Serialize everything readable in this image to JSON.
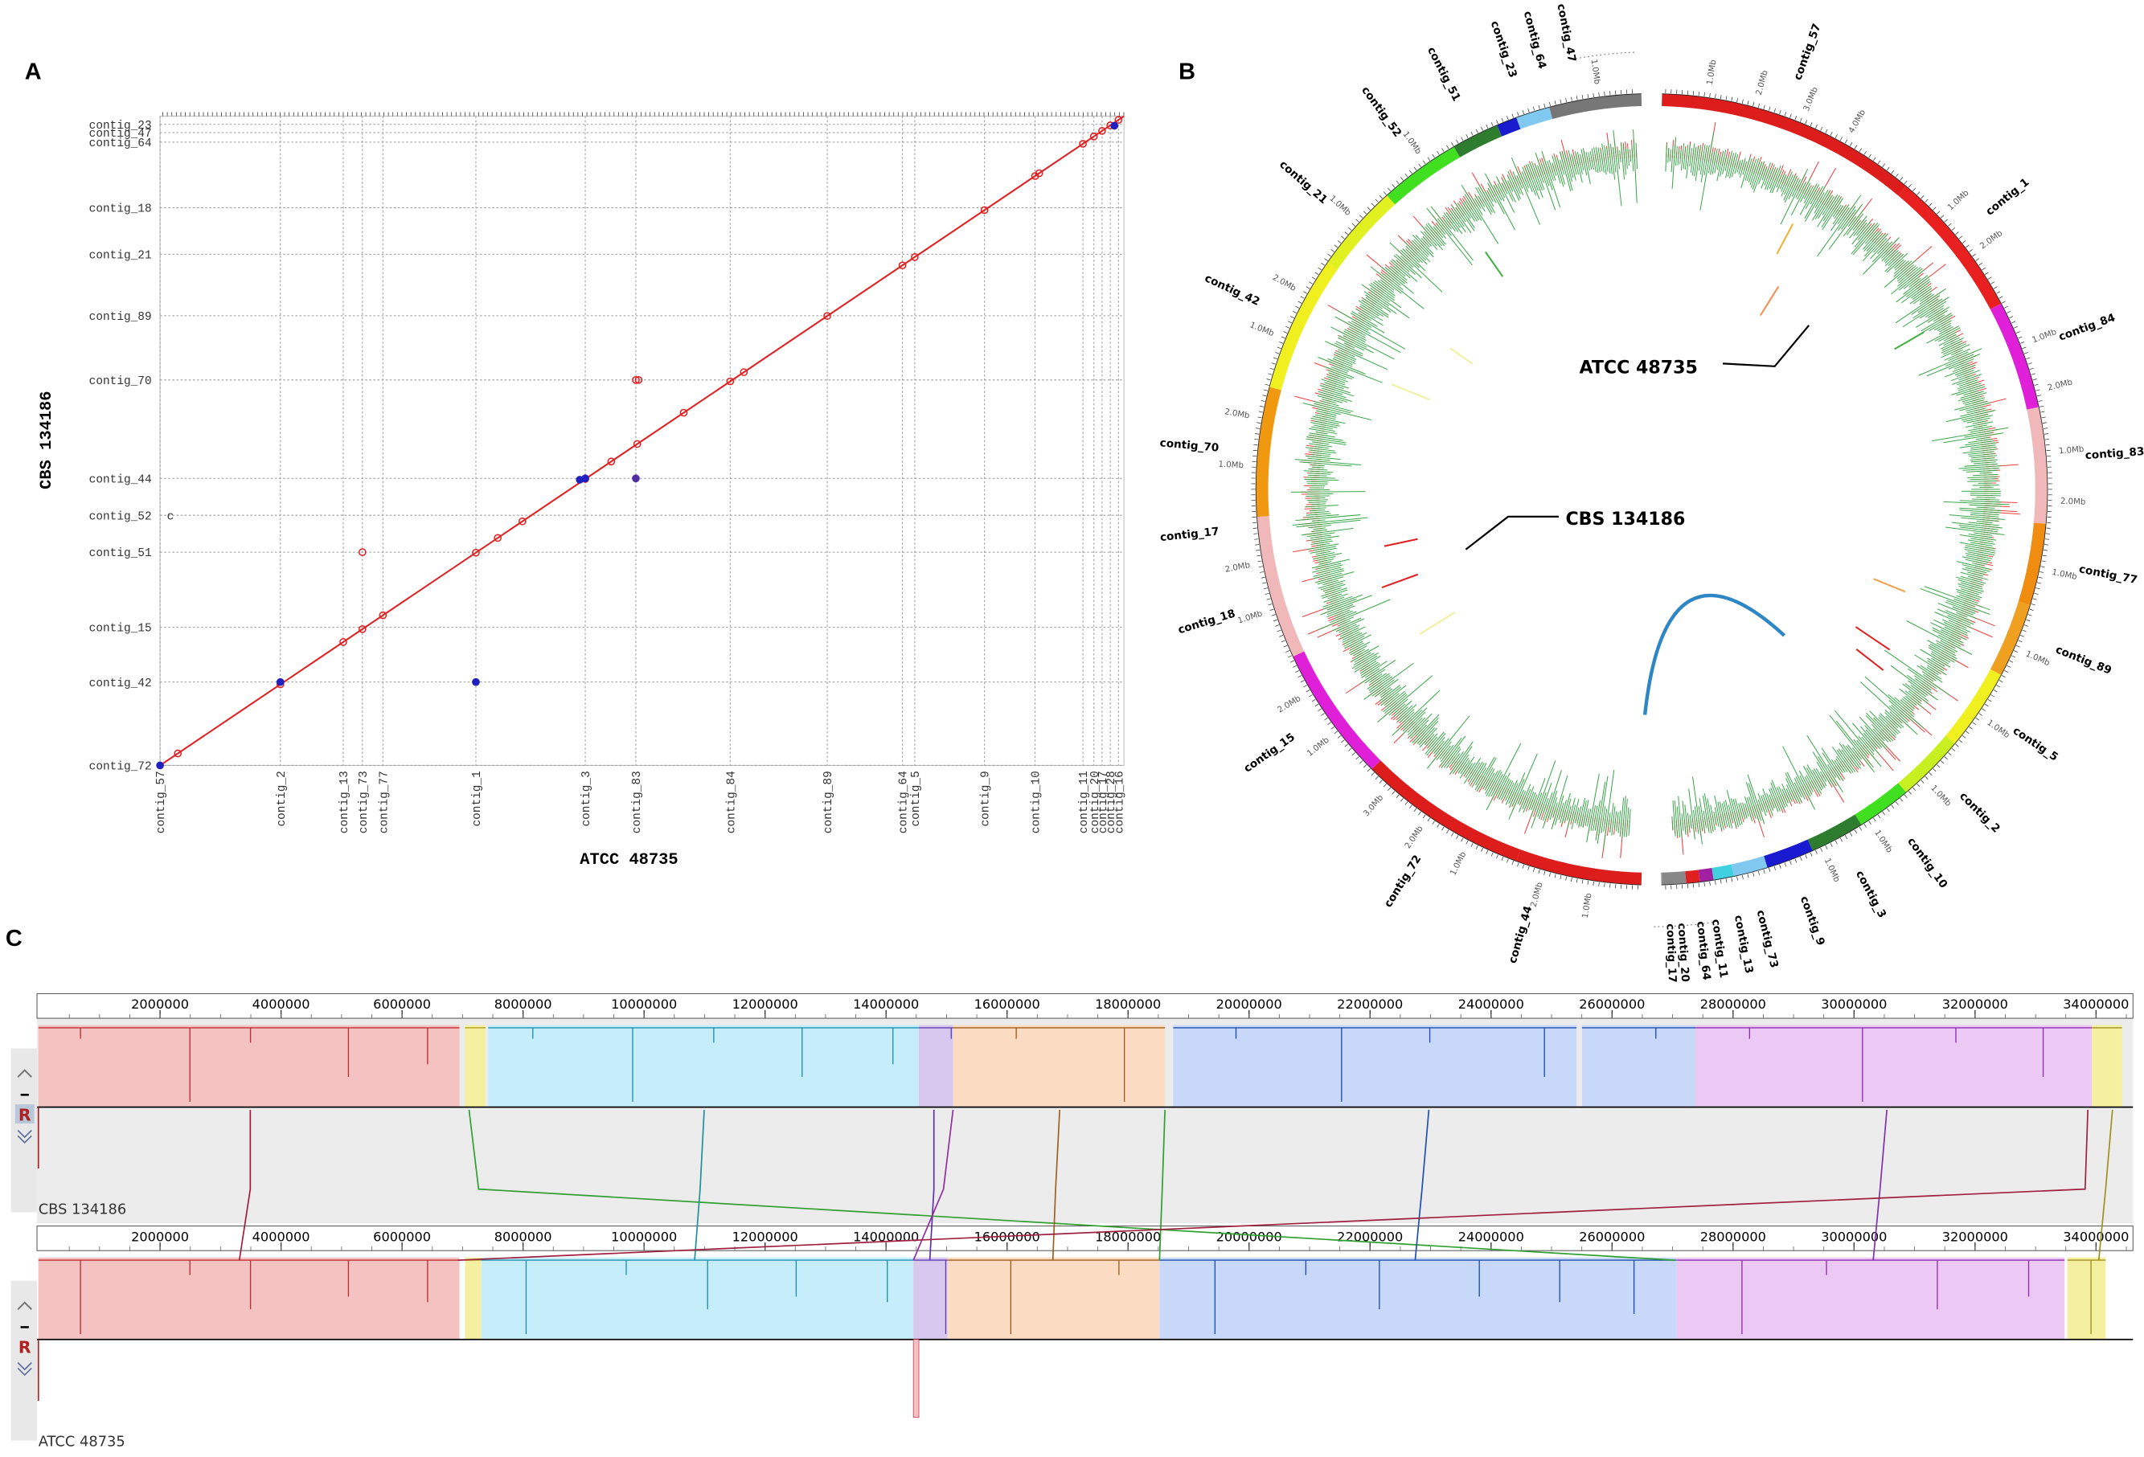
{
  "panels": {
    "a": {
      "label": "A",
      "x_axis_title": "ATCC 48735",
      "y_axis_title": "CBS 134186",
      "x_contigs": [
        "contig_57",
        "contig_2",
        "contig_13",
        "contig_73",
        "contig_77",
        "contig_1",
        "contig_3",
        "contig_83",
        "contig_84",
        "contig_89",
        "contig_64",
        "contig_5",
        "contig_9",
        "contig_10",
        "contig_11",
        "contig_20",
        "contig_17",
        "contig_28",
        "contig_16"
      ],
      "y_contigs": [
        "contig_72",
        "contig_42",
        "contig_15",
        "contig_51",
        "contig_52",
        "contig_44",
        "contig_70",
        "contig_89",
        "contig_21",
        "contig_18",
        "contig_64",
        "contig_47",
        "contig_23"
      ],
      "annotation": "c"
    },
    "b": {
      "label": "B",
      "contigs": [
        "contig_57",
        "contig_1",
        "contig_84",
        "contig_83",
        "contig_77",
        "contig_89",
        "contig_5",
        "contig_2",
        "contig_10",
        "contig_3",
        "contig_9",
        "contig_73",
        "contig_13",
        "contig_11",
        "contig_64",
        "contig_20",
        "contig_17",
        "contig_44",
        "contig_72",
        "contig_15",
        "contig_18",
        "contig_17",
        "contig_70",
        "contig_42",
        "contig_21",
        "contig_52",
        "contig_51",
        "contig_23",
        "contig_64",
        "contig_47"
      ],
      "scale_labels": [
        "1.0Mb",
        "2.0Mb",
        "3.0Mb",
        "4.0Mb"
      ],
      "genome_labels": [
        "ATCC 48735",
        "CBS 134186"
      ]
    },
    "c": {
      "label": "C",
      "ruler_ticks": [
        2000000,
        4000000,
        6000000,
        8000000,
        10000000,
        12000000,
        14000000,
        16000000,
        18000000,
        20000000,
        22000000,
        24000000,
        26000000,
        28000000,
        30000000,
        32000000,
        34000000
      ],
      "genomes": [
        {
          "name": "CBS 134186",
          "button": "R"
        },
        {
          "name": "ATCC 48735",
          "button": "R"
        }
      ]
    }
  }
}
